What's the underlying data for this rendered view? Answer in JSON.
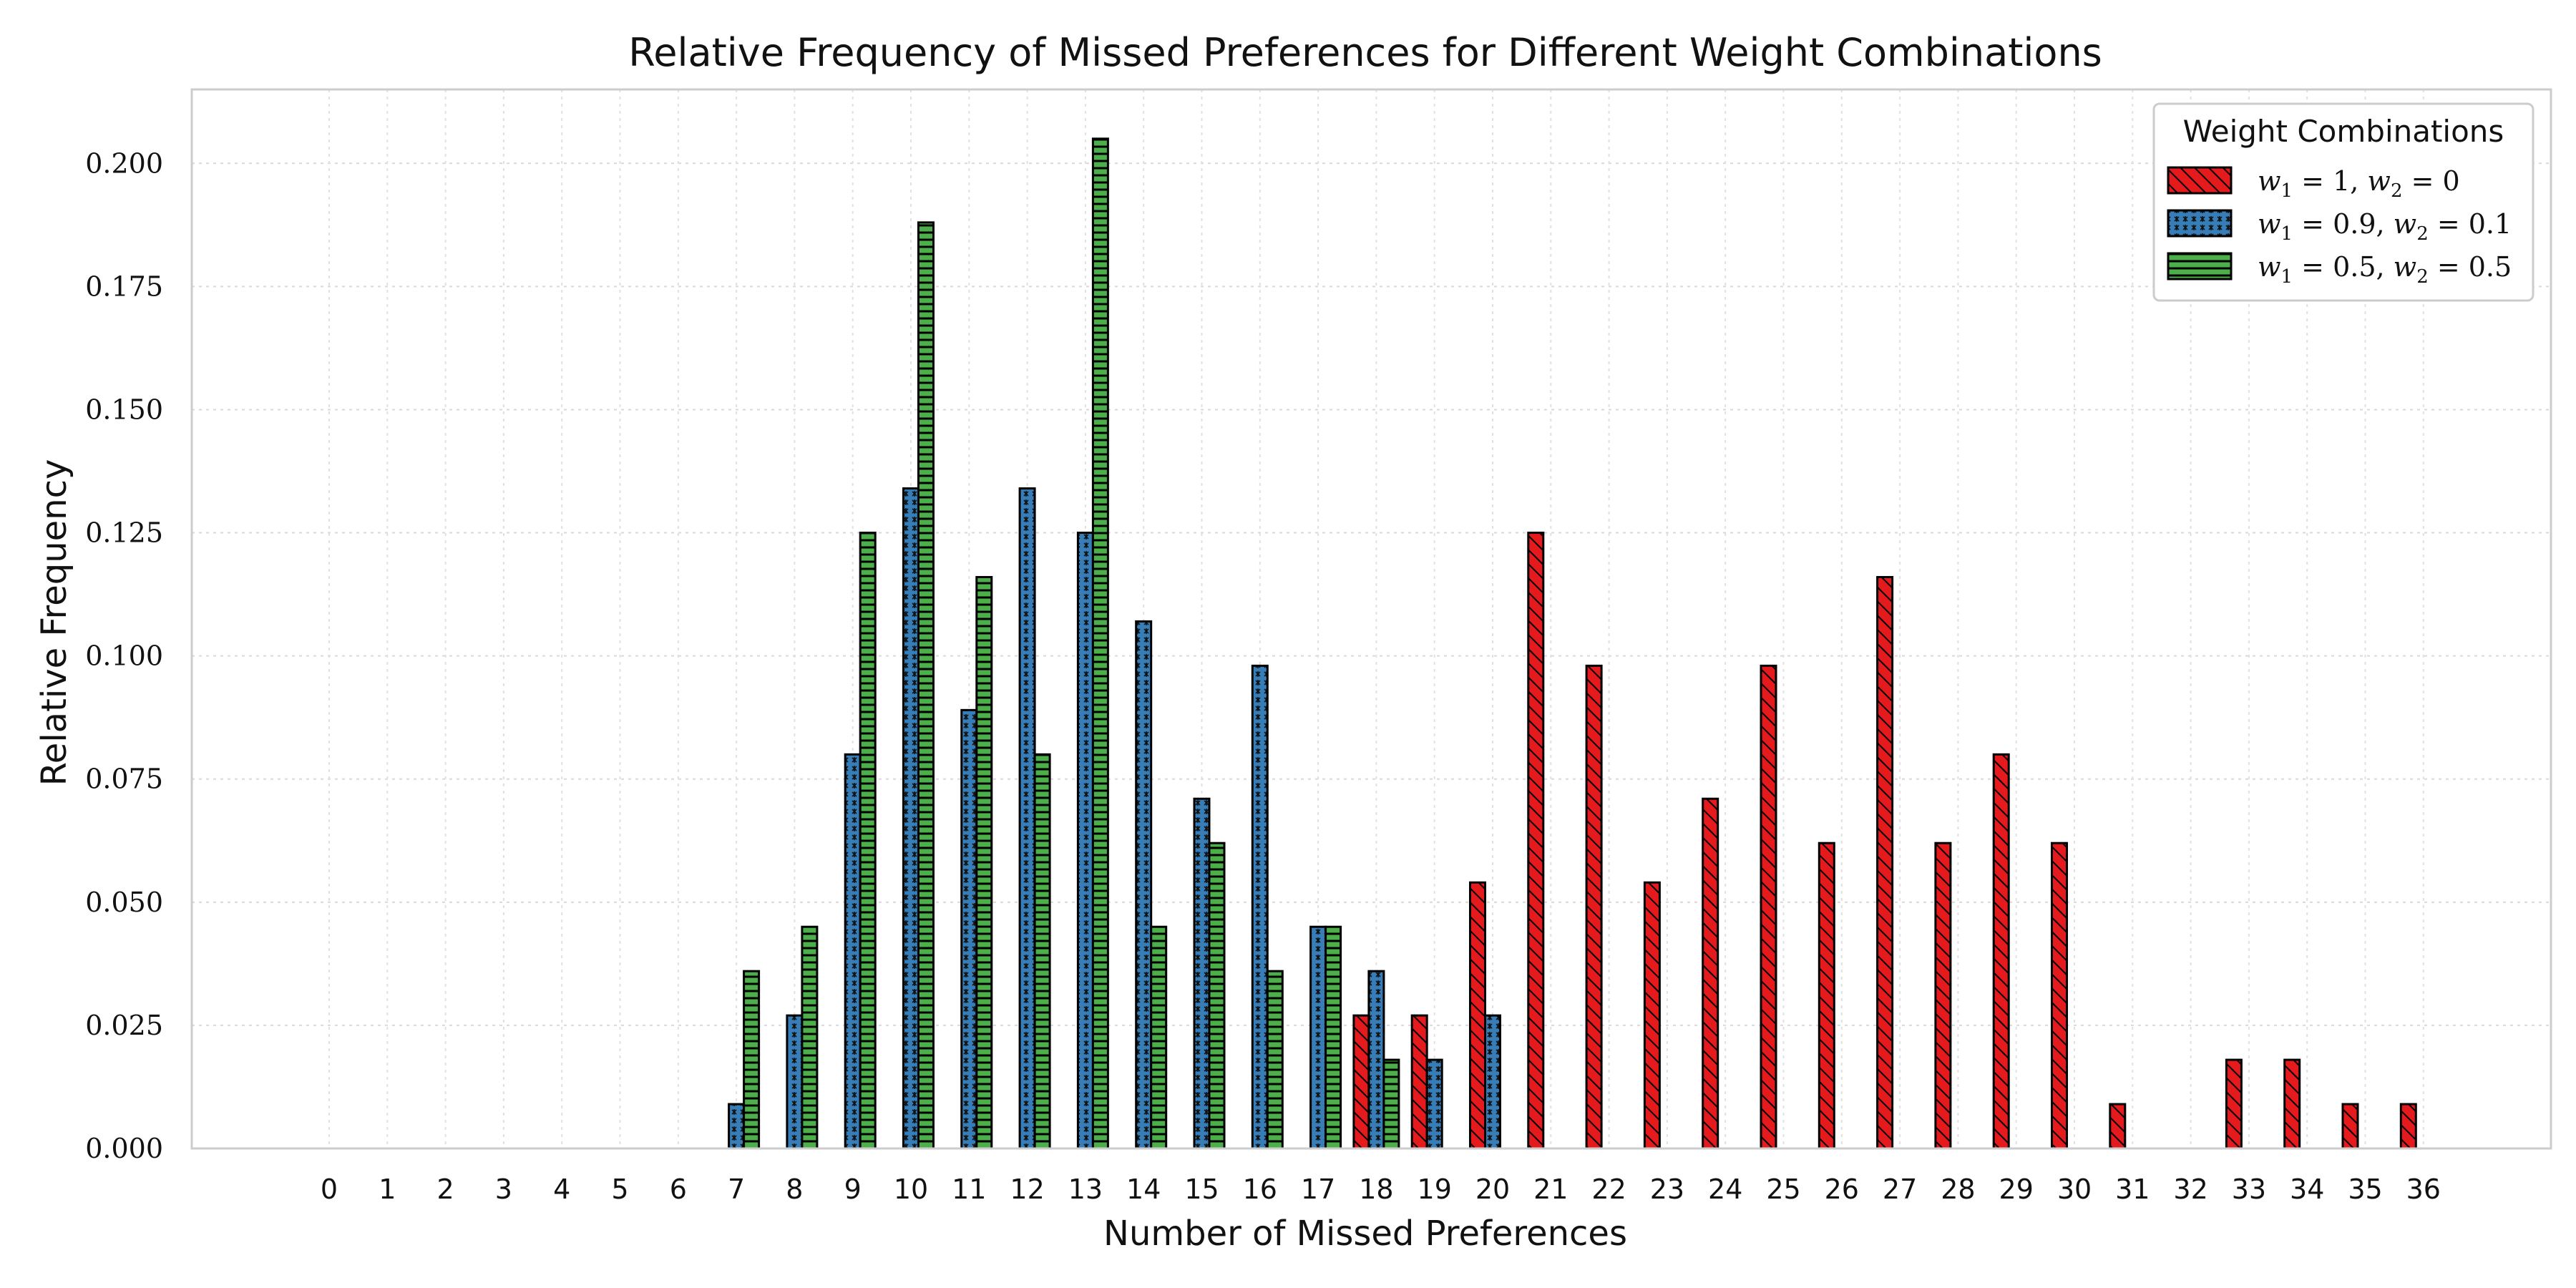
{
  "chart_data": {
    "type": "bar",
    "title": "Relative Frequency of Missed Preferences for Different Weight Combinations",
    "xlabel": "Number of Missed Preferences",
    "ylabel": "Relative Frequency",
    "categories": [
      0,
      1,
      2,
      3,
      4,
      5,
      6,
      7,
      8,
      9,
      10,
      11,
      12,
      13,
      14,
      15,
      16,
      17,
      18,
      19,
      20,
      21,
      22,
      23,
      24,
      25,
      26,
      27,
      28,
      29,
      30,
      31,
      32,
      33,
      34,
      35,
      36
    ],
    "ylim": [
      0,
      0.215
    ],
    "yticks": [
      0.0,
      0.025,
      0.05,
      0.075,
      0.1,
      0.125,
      0.15,
      0.175,
      0.2
    ],
    "ytick_labels": [
      "0.000",
      "0.025",
      "0.050",
      "0.075",
      "0.100",
      "0.125",
      "0.150",
      "0.175",
      "0.200"
    ],
    "grid": true,
    "legend": {
      "title": "Weight Combinations",
      "placement": "top-right"
    },
    "series": [
      {
        "name": "w1 = 1, w2 = 0",
        "color": "#e41a1c",
        "hatch": "diagonal",
        "values": [
          0,
          0,
          0,
          0,
          0,
          0,
          0,
          0,
          0,
          0,
          0,
          0,
          0,
          0,
          0,
          0,
          0,
          0,
          0.027,
          0.027,
          0.054,
          0.125,
          0.098,
          0.054,
          0.071,
          0.098,
          0.062,
          0.116,
          0.062,
          0.08,
          0.062,
          0.009,
          0,
          0.018,
          0.018,
          0.009,
          0.009
        ]
      },
      {
        "name": "w1 = 0.9, w2 = 0.1",
        "color": "#377eb8",
        "hatch": "stars",
        "values": [
          0,
          0,
          0,
          0,
          0,
          0,
          0,
          0.009,
          0.027,
          0.08,
          0.134,
          0.089,
          0.134,
          0.125,
          0.107,
          0.071,
          0.098,
          0.045,
          0.036,
          0.018,
          0.027,
          0,
          0,
          0,
          0,
          0,
          0,
          0,
          0,
          0,
          0,
          0,
          0,
          0,
          0,
          0,
          0
        ]
      },
      {
        "name": "w1 = 0.5, w2 = 0.5",
        "color": "#4daf4a",
        "hatch": "horizontal",
        "values": [
          0,
          0,
          0,
          0,
          0,
          0,
          0,
          0.036,
          0.045,
          0.125,
          0.188,
          0.116,
          0.08,
          0.205,
          0.045,
          0.062,
          0.036,
          0.045,
          0.018,
          0,
          0,
          0,
          0,
          0,
          0,
          0,
          0,
          0,
          0,
          0,
          0,
          0,
          0,
          0,
          0,
          0,
          0
        ]
      }
    ]
  }
}
